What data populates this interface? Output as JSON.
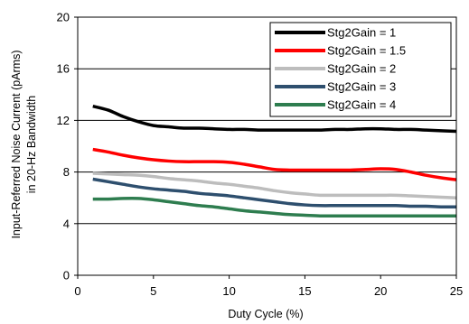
{
  "chart_data": {
    "type": "line",
    "xlabel": "Duty Cycle (%)",
    "ylabel": [
      "Input-Referred Noise Current (pArms)",
      "in 20-Hz Bandwidth"
    ],
    "xlim": [
      0,
      25
    ],
    "ylim": [
      0,
      20
    ],
    "x_ticks": [
      "0",
      "5",
      "10",
      "15",
      "20",
      "25"
    ],
    "y_ticks": [
      "0",
      "4",
      "8",
      "12",
      "16",
      "20"
    ],
    "grid": "horizontal",
    "legend": "top-right",
    "series": [
      {
        "name": "Stg2Gain = 1",
        "color": "#000000",
        "x": [
          1,
          2,
          3,
          4,
          5,
          6,
          7,
          8,
          9,
          10,
          11,
          12,
          13,
          14,
          15,
          16,
          17,
          18,
          19,
          20,
          21,
          22,
          23,
          24,
          25
        ],
        "y": [
          13.1,
          12.8,
          12.3,
          11.9,
          11.6,
          11.5,
          11.4,
          11.4,
          11.35,
          11.3,
          11.3,
          11.25,
          11.25,
          11.25,
          11.25,
          11.25,
          11.3,
          11.3,
          11.35,
          11.35,
          11.3,
          11.3,
          11.25,
          11.2,
          11.15
        ]
      },
      {
        "name": "Stg2Gain = 1.5",
        "color": "#ff0000",
        "x": [
          1,
          2,
          3,
          4,
          5,
          6,
          7,
          8,
          9,
          10,
          11,
          12,
          13,
          14,
          15,
          16,
          17,
          18,
          19,
          20,
          21,
          22,
          23,
          24,
          25
        ],
        "y": [
          9.75,
          9.55,
          9.3,
          9.1,
          8.95,
          8.85,
          8.8,
          8.8,
          8.8,
          8.75,
          8.6,
          8.4,
          8.2,
          8.15,
          8.15,
          8.15,
          8.15,
          8.15,
          8.2,
          8.25,
          8.2,
          8.0,
          7.75,
          7.55,
          7.4
        ]
      },
      {
        "name": "Stg2Gain = 2",
        "color": "#bdbdbd",
        "x": [
          1,
          2,
          3,
          4,
          5,
          6,
          7,
          8,
          9,
          10,
          11,
          12,
          13,
          14,
          15,
          16,
          17,
          18,
          19,
          20,
          21,
          22,
          23,
          24,
          25
        ],
        "y": [
          7.9,
          7.85,
          7.8,
          7.75,
          7.65,
          7.5,
          7.4,
          7.3,
          7.15,
          7.05,
          6.9,
          6.75,
          6.55,
          6.4,
          6.3,
          6.2,
          6.2,
          6.2,
          6.2,
          6.2,
          6.2,
          6.15,
          6.1,
          6.05,
          6.0
        ]
      },
      {
        "name": "Stg2Gain = 3",
        "color": "#2e4f6e",
        "x": [
          1,
          2,
          3,
          4,
          5,
          6,
          7,
          8,
          9,
          10,
          11,
          12,
          13,
          14,
          15,
          16,
          17,
          18,
          19,
          20,
          21,
          22,
          23,
          24,
          25
        ],
        "y": [
          7.45,
          7.25,
          7.05,
          6.85,
          6.7,
          6.6,
          6.5,
          6.35,
          6.25,
          6.15,
          6.0,
          5.85,
          5.7,
          5.55,
          5.45,
          5.4,
          5.4,
          5.4,
          5.4,
          5.4,
          5.4,
          5.35,
          5.35,
          5.3,
          5.3
        ]
      },
      {
        "name": "Stg2Gain = 4",
        "color": "#2e7d4f",
        "x": [
          1,
          2,
          3,
          4,
          5,
          6,
          7,
          8,
          9,
          10,
          11,
          12,
          13,
          14,
          15,
          16,
          17,
          18,
          19,
          20,
          21,
          22,
          23,
          24,
          25
        ],
        "y": [
          5.9,
          5.9,
          5.95,
          5.95,
          5.85,
          5.7,
          5.55,
          5.4,
          5.3,
          5.15,
          5.0,
          4.9,
          4.8,
          4.7,
          4.65,
          4.6,
          4.6,
          4.6,
          4.6,
          4.6,
          4.6,
          4.6,
          4.6,
          4.6,
          4.6
        ]
      }
    ]
  }
}
